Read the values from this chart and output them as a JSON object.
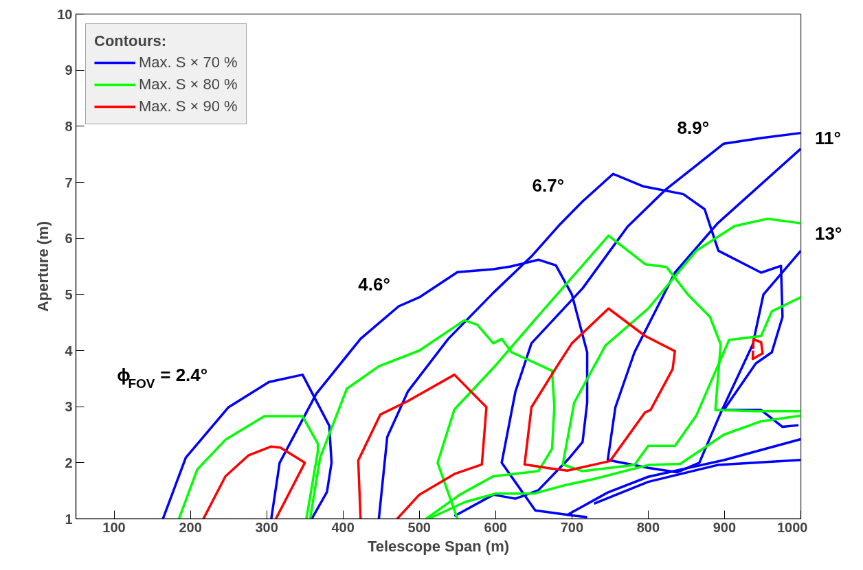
{
  "chart_data": {
    "type": "line",
    "xlabel": "Telescope Span (m)",
    "ylabel": "Aperture (m)",
    "legend_title": "Contours:",
    "xlim": [
      50,
      1000
    ],
    "ylim": [
      1,
      10
    ],
    "xticks": [
      100,
      200,
      300,
      400,
      500,
      600,
      700,
      800,
      900,
      1000
    ],
    "yticks": [
      1,
      2,
      3,
      4,
      5,
      6,
      7,
      8,
      9,
      10
    ],
    "grid": false,
    "legend": "top left",
    "marker": "none",
    "line_style": "solid",
    "series": [
      {
        "name": "Max. S × 70 %",
        "color": "#0000ff",
        "x": [
          164,
          194,
          250,
          303,
          347,
          382,
          385,
          379,
          359
        ],
        "values": [
          1,
          2.09,
          2.99,
          3.44,
          3.57,
          2.66,
          2.0,
          1.48,
          1.0
        ]
      },
      {
        "color": "#0000ff",
        "x": [
          306,
          317,
          365,
          423,
          473,
          500,
          550,
          597,
          620,
          656,
          679,
          700,
          720,
          720,
          714,
          697,
          656,
          626,
          597,
          546
        ],
        "values": [
          1,
          2.0,
          3.23,
          4.21,
          4.79,
          4.95,
          5.4,
          5.45,
          5.5,
          5.62,
          5.52,
          5.0,
          3.97,
          3.07,
          2.37,
          2.09,
          1.51,
          1.36,
          1.43,
          1.05
        ]
      },
      {
        "color": "#0000ff",
        "x": [
          447,
          458,
          485,
          538,
          597,
          647,
          685,
          714,
          754,
          793,
          846,
          874,
          892,
          948,
          974,
          976,
          962,
          941,
          899,
          948,
          976,
          997
        ],
        "values": [
          1,
          2.46,
          3.27,
          4.21,
          5.03,
          5.68,
          6.26,
          6.66,
          7.15,
          6.93,
          6.79,
          6.52,
          5.78,
          5.39,
          5.51,
          4.6,
          3.97,
          3.77,
          2.94,
          2.94,
          2.64,
          2.67
        ]
      },
      {
        "color": "#0000ff",
        "x": [
          720,
          700,
          652,
          608,
          626,
          647,
          714,
          773,
          822,
          899,
          948,
          1000
        ],
        "values": [
          1.03,
          1.06,
          1.15,
          2.0,
          3.27,
          4.13,
          5.11,
          6.21,
          6.86,
          7.69,
          7.79,
          7.88
        ]
      },
      {
        "color": "#0000ff",
        "x": [
          1000,
          891,
          835,
          782,
          757,
          747,
          800,
          838,
          867,
          895,
          937,
          951,
          1000
        ],
        "values": [
          7.6,
          6.27,
          5.39,
          3.97,
          2.99,
          2.05,
          1.91,
          1.83,
          2.0,
          2.89,
          4.11,
          5.0,
          5.78
        ]
      },
      {
        "color": "#0000ff",
        "x": [
          694,
          747,
          800,
          900,
          1000
        ],
        "values": [
          1.07,
          1.47,
          1.75,
          2.05,
          2.42
        ]
      },
      {
        "color": "#0000ff",
        "x": [
          729,
          800,
          891,
          1000
        ],
        "values": [
          1.27,
          1.66,
          1.96,
          2.05
        ]
      },
      {
        "name": "Max. S × 80 %",
        "color": "#00ff00",
        "x": [
          185,
          209,
          246,
          297,
          347,
          367,
          367,
          352
        ],
        "values": [
          1,
          1.88,
          2.41,
          2.83,
          2.83,
          2.34,
          2.2,
          1.0
        ]
      },
      {
        "color": "#00ff00",
        "x": [
          357,
          370,
          405,
          447,
          500,
          559,
          576,
          597,
          608,
          621,
          674,
          677,
          674,
          656,
          597,
          553,
          509
        ],
        "values": [
          1,
          2.09,
          3.32,
          3.72,
          4.0,
          4.54,
          4.46,
          4.13,
          4.21,
          3.97,
          3.64,
          3.0,
          2.25,
          1.85,
          1.76,
          1.43,
          1.0
        ]
      },
      {
        "color": "#00ff00",
        "x": [
          550,
          524,
          546,
          597,
          656,
          714,
          748,
          796,
          824,
          852,
          881,
          895,
          888,
          940,
          1000
        ],
        "values": [
          1.0,
          2.0,
          2.95,
          3.69,
          4.62,
          5.52,
          6.05,
          5.54,
          5.49,
          5.0,
          4.6,
          4.11,
          2.94,
          2.92,
          2.92
        ]
      },
      {
        "color": "#00ff00",
        "x": [
          1000,
          962,
          948,
          906,
          891,
          863,
          835,
          800,
          782,
          714,
          688,
          703,
          744,
          800,
          863,
          913,
          956,
          1000
        ],
        "values": [
          4.95,
          4.7,
          4.26,
          4.19,
          3.72,
          2.84,
          2.3,
          2.3,
          1.96,
          1.85,
          1.97,
          3.07,
          4.09,
          4.75,
          5.78,
          6.22,
          6.35,
          6.27
        ]
      },
      {
        "color": "#00ff00",
        "x": [
          512,
          560,
          600,
          650,
          694,
          729,
          800,
          842,
          899,
          948,
          1000
        ],
        "values": [
          1.0,
          1.3,
          1.45,
          1.45,
          1.61,
          1.71,
          1.96,
          1.98,
          2.5,
          2.74,
          2.84
        ]
      },
      {
        "name": "Max. S × 90 %",
        "color": "#ff0000",
        "x": [
          217,
          246,
          276,
          306,
          318,
          350,
          312
        ],
        "values": [
          1,
          1.76,
          2.13,
          2.29,
          2.27,
          2.0,
          1.0
        ]
      },
      {
        "color": "#ff0000",
        "x": [
          423,
          420,
          449,
          485,
          546,
          588,
          582,
          546,
          500,
          471
        ],
        "values": [
          1.0,
          2.04,
          2.86,
          3.1,
          3.57,
          2.99,
          1.97,
          1.8,
          1.43,
          1.0
        ]
      },
      {
        "color": "#ff0000",
        "x": [
          667,
          638,
          647,
          679,
          700,
          748,
          796,
          835,
          832,
          803,
          796,
          750,
          694,
          666
        ],
        "values": [
          1.91,
          1.97,
          2.99,
          3.69,
          4.13,
          4.75,
          4.26,
          3.99,
          3.67,
          2.94,
          2.9,
          2.03,
          1.86,
          1.91
        ]
      },
      {
        "color": "#ff0000",
        "x": [
          937.5,
          938,
          948,
          950,
          937,
          937.4
        ],
        "values": [
          4.03,
          4.2,
          4.15,
          3.95,
          3.85,
          4.0
        ]
      }
    ],
    "annotations": [
      "ϕ$_{FOV}$ = 2.4°",
      "4.6°",
      "6.7°",
      "8.9°",
      "11°",
      "13°"
    ]
  }
}
